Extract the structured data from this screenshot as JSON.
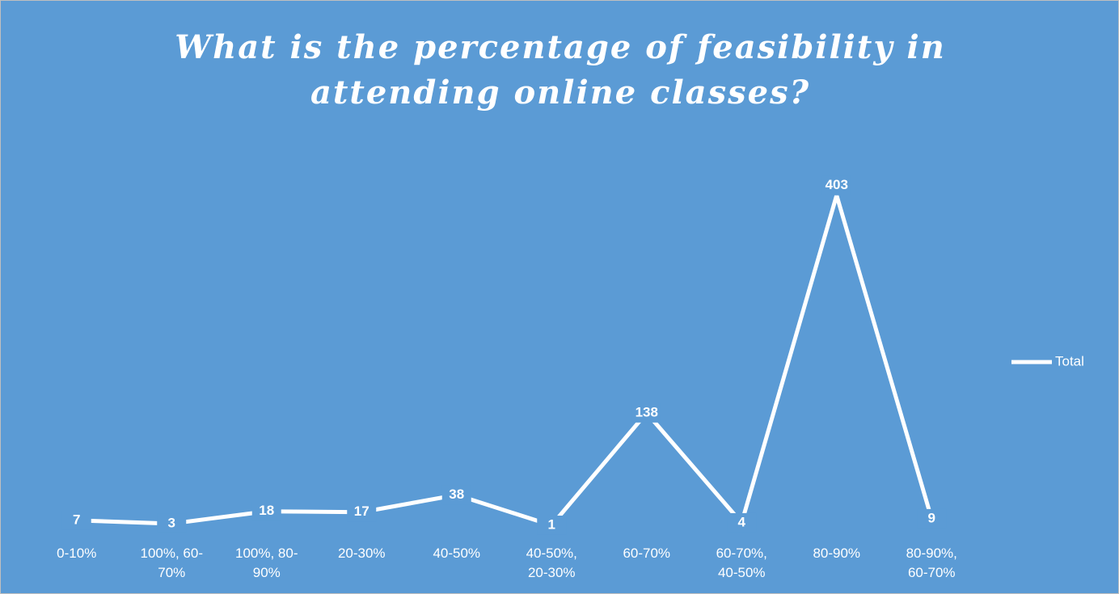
{
  "chart_data": {
    "type": "line",
    "title": "What is the percentage of feasibility in attending online classes?",
    "categories": [
      "0-10%",
      "100%, 60-70%",
      "100%, 80-90%",
      "20-30%",
      "40-50%",
      "40-50%, 20-30%",
      "60-70%",
      "60-70%, 40-50%",
      "80-90%",
      "80-90%, 60-70%"
    ],
    "series": [
      {
        "name": "Total",
        "color": "#ffffff",
        "values": [
          7,
          3,
          18,
          17,
          38,
          1,
          138,
          4,
          403,
          9
        ]
      }
    ],
    "ylim": [
      0,
      450
    ],
    "legend": "right"
  }
}
